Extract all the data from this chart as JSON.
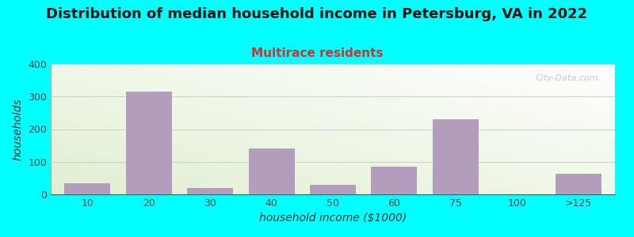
{
  "title": "Distribution of median household income in Petersburg, VA in 2022",
  "subtitle": "Multirace residents",
  "xlabel": "household income ($1000)",
  "ylabel": "households",
  "bg_color": "#00FFFF",
  "bar_color": "#b39dbd",
  "categories": [
    "10",
    "20",
    "30",
    "40",
    "50",
    "60",
    "75",
    "100",
    ">125"
  ],
  "values": [
    35,
    315,
    20,
    140,
    30,
    85,
    230,
    0,
    63
  ],
  "ylim": [
    0,
    400
  ],
  "yticks": [
    0,
    100,
    200,
    300,
    400
  ],
  "title_fontsize": 13,
  "subtitle_fontsize": 11,
  "subtitle_color": "#cc3333",
  "axis_label_fontsize": 10,
  "tick_fontsize": 9,
  "watermark": "City-Data.com"
}
